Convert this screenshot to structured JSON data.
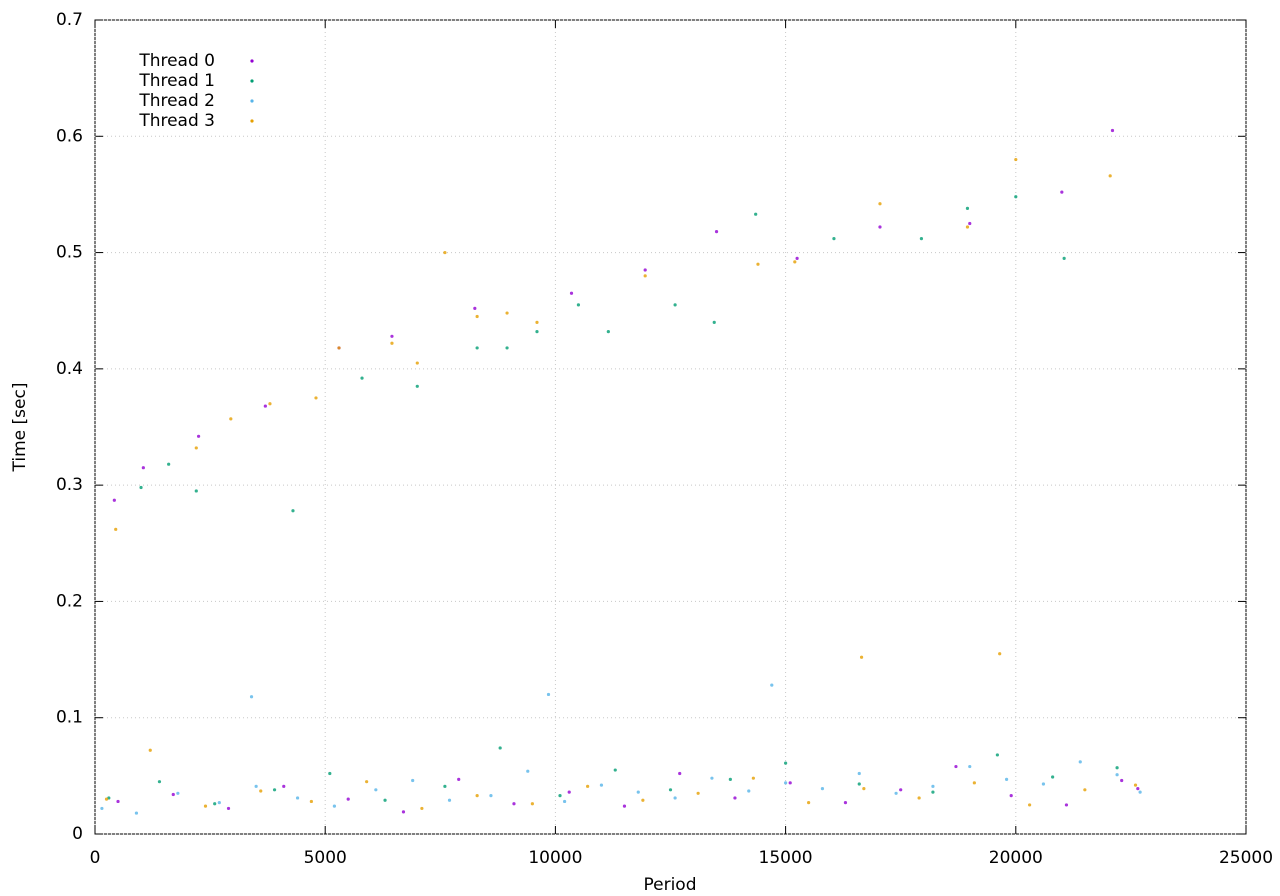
{
  "chart_data": {
    "type": "scatter",
    "xlabel": "Period",
    "ylabel": "Time [sec]",
    "xlim": [
      0,
      25000
    ],
    "ylim": [
      0,
      0.7
    ],
    "xticks": [
      0,
      5000,
      10000,
      15000,
      20000,
      25000
    ],
    "yticks": [
      0,
      0.1,
      0.2,
      0.3,
      0.4,
      0.5,
      0.6,
      0.7
    ],
    "grid": true,
    "legend": "top-left",
    "series": [
      {
        "name": "Thread 0",
        "color": "#9400d3",
        "x": [
          420,
          1050,
          2250,
          3700,
          5300,
          6450,
          8250,
          10350,
          11950,
          13500,
          15250,
          17050,
          19000,
          21000,
          22100,
          500,
          1700,
          2900,
          4100,
          5500,
          6700,
          7900,
          9100,
          10300,
          11500,
          12700,
          13900,
          15100,
          16300,
          17500,
          18700,
          19900,
          21100,
          22300,
          22650
        ],
        "values": [
          0.287,
          0.315,
          0.342,
          0.368,
          0.418,
          0.428,
          0.452,
          0.465,
          0.485,
          0.518,
          0.495,
          0.522,
          0.525,
          0.552,
          0.605,
          0.028,
          0.034,
          0.022,
          0.041,
          0.03,
          0.019,
          0.047,
          0.026,
          0.036,
          0.024,
          0.052,
          0.031,
          0.044,
          0.027,
          0.038,
          0.058,
          0.033,
          0.025,
          0.046,
          0.039
        ]
      },
      {
        "name": "Thread 1",
        "color": "#009e73",
        "x": [
          1000,
          1600,
          2200,
          4300,
          5800,
          7000,
          8300,
          8950,
          9600,
          10500,
          11150,
          12600,
          13450,
          14350,
          16050,
          17950,
          18950,
          20000,
          21050,
          300,
          1400,
          2600,
          3900,
          5100,
          6300,
          7600,
          8800,
          10100,
          11300,
          12500,
          13800,
          15000,
          16600,
          18200,
          19600,
          20800,
          22200
        ],
        "values": [
          0.298,
          0.318,
          0.295,
          0.278,
          0.392,
          0.385,
          0.418,
          0.418,
          0.432,
          0.455,
          0.432,
          0.455,
          0.44,
          0.533,
          0.512,
          0.512,
          0.538,
          0.548,
          0.495,
          0.031,
          0.045,
          0.026,
          0.038,
          0.052,
          0.029,
          0.041,
          0.074,
          0.033,
          0.055,
          0.038,
          0.047,
          0.061,
          0.043,
          0.036,
          0.068,
          0.049,
          0.057
        ]
      },
      {
        "name": "Thread 2",
        "color": "#56b4e9",
        "x": [
          150,
          900,
          1800,
          2700,
          3500,
          4400,
          5200,
          6100,
          6900,
          7700,
          8600,
          9400,
          10200,
          11000,
          11800,
          12600,
          13400,
          14200,
          15000,
          15800,
          16600,
          17400,
          18200,
          19000,
          19800,
          20600,
          21400,
          22200,
          22700,
          3400,
          9850,
          14700
        ],
        "values": [
          0.022,
          0.018,
          0.035,
          0.027,
          0.041,
          0.031,
          0.024,
          0.038,
          0.046,
          0.029,
          0.033,
          0.054,
          0.028,
          0.042,
          0.036,
          0.031,
          0.048,
          0.037,
          0.044,
          0.039,
          0.052,
          0.035,
          0.041,
          0.058,
          0.047,
          0.043,
          0.062,
          0.051,
          0.036,
          0.118,
          0.12,
          0.128
        ]
      },
      {
        "name": "Thread 3",
        "color": "#e69f00",
        "x": [
          450,
          2200,
          2950,
          3800,
          4800,
          5300,
          6450,
          7000,
          7600,
          8300,
          8950,
          9600,
          11950,
          14400,
          15200,
          17050,
          18950,
          20000,
          22050,
          250,
          1200,
          2400,
          3600,
          4700,
          5900,
          7100,
          8300,
          9500,
          10700,
          11900,
          13100,
          14300,
          15500,
          16700,
          17900,
          19100,
          20300,
          21500,
          22600,
          16650,
          19650
        ],
        "values": [
          0.262,
          0.332,
          0.357,
          0.37,
          0.375,
          0.418,
          0.422,
          0.405,
          0.5,
          0.445,
          0.448,
          0.44,
          0.48,
          0.49,
          0.492,
          0.542,
          0.522,
          0.58,
          0.566,
          0.03,
          0.072,
          0.024,
          0.037,
          0.028,
          0.045,
          0.022,
          0.033,
          0.026,
          0.041,
          0.029,
          0.035,
          0.048,
          0.027,
          0.039,
          0.031,
          0.044,
          0.025,
          0.038,
          0.042,
          0.152,
          0.155
        ]
      }
    ]
  }
}
